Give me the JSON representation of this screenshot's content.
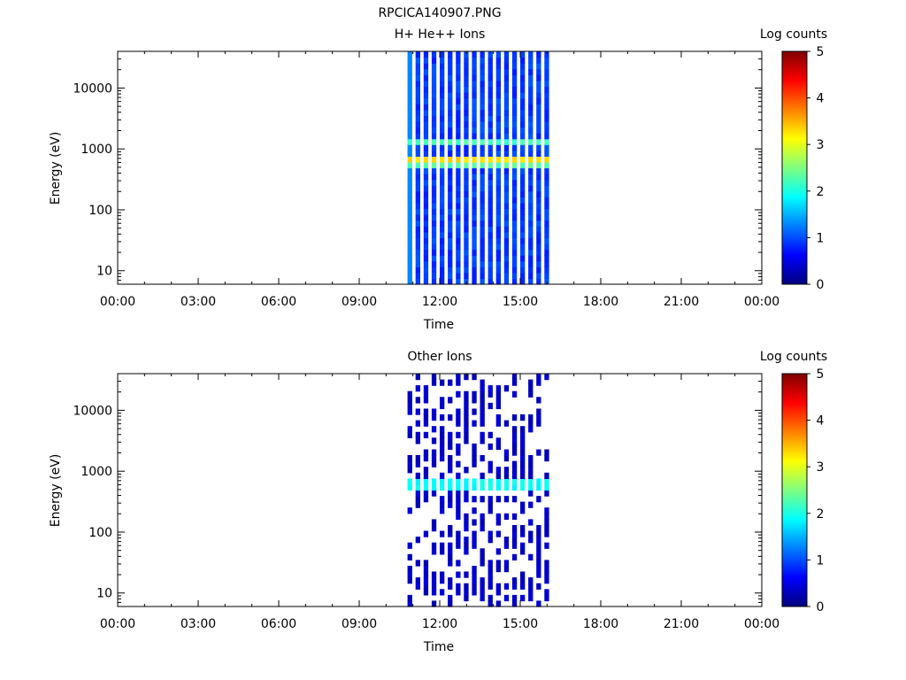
{
  "figure_title": "RPCICA140907.PNG",
  "colors": {
    "colormap": [
      "#00007f",
      "#0000ff",
      "#007fff",
      "#00ffff",
      "#7fff7f",
      "#ffff00",
      "#ff7f00",
      "#ff0000",
      "#7f0000"
    ],
    "axis": "#000000",
    "background": "#ffffff"
  },
  "chart_data": [
    {
      "type": "heatmap",
      "title": "H+ He++ Ions",
      "xlabel": "Time",
      "ylabel": "Energy (eV)",
      "yscale": "log",
      "ylim": [
        6,
        40000
      ],
      "xlim": [
        "00:00",
        "24:00"
      ],
      "x_ticks": [
        "00:00",
        "03:00",
        "06:00",
        "09:00",
        "12:00",
        "15:00",
        "18:00",
        "21:00",
        "00:00"
      ],
      "y_ticks": [
        10,
        100,
        1000,
        10000
      ],
      "y_tick_labels": [
        "10",
        "100",
        "1000",
        "10000"
      ],
      "colorbar": {
        "label": "Log counts",
        "range": [
          0,
          5
        ],
        "ticks": [
          "0",
          "1",
          "2",
          "3",
          "4",
          "5"
        ]
      },
      "data_time_range": [
        "10:48",
        "16:12"
      ],
      "energy_bands": [
        {
          "energy_range": [
            440,
            560
          ],
          "log_counts": 2.3
        },
        {
          "energy_range": [
            560,
            620
          ],
          "log_counts": 1.4
        },
        {
          "energy_range": [
            620,
            780
          ],
          "log_counts": 3.3
        },
        {
          "energy_range": [
            1200,
            1550
          ],
          "log_counts": 2.2
        }
      ],
      "background_log_counts": 0.9
    },
    {
      "type": "heatmap",
      "title": "Other Ions",
      "xlabel": "Time",
      "ylabel": "Energy (eV)",
      "yscale": "log",
      "ylim": [
        6,
        40000
      ],
      "xlim": [
        "00:00",
        "24:00"
      ],
      "x_ticks": [
        "00:00",
        "03:00",
        "06:00",
        "09:00",
        "12:00",
        "15:00",
        "18:00",
        "21:00",
        "00:00"
      ],
      "y_ticks": [
        10,
        100,
        1000,
        10000
      ],
      "y_tick_labels": [
        "10",
        "100",
        "1000",
        "10000"
      ],
      "colorbar": {
        "label": "Log counts",
        "range": [
          0,
          5
        ],
        "ticks": [
          "0",
          "1",
          "2",
          "3",
          "4",
          "5"
        ]
      },
      "data_time_range": [
        "10:48",
        "16:12"
      ],
      "energy_bands": [
        {
          "energy_range": [
            540,
            760
          ],
          "log_counts": 1.9
        }
      ],
      "background_log_counts": 0.3
    }
  ]
}
